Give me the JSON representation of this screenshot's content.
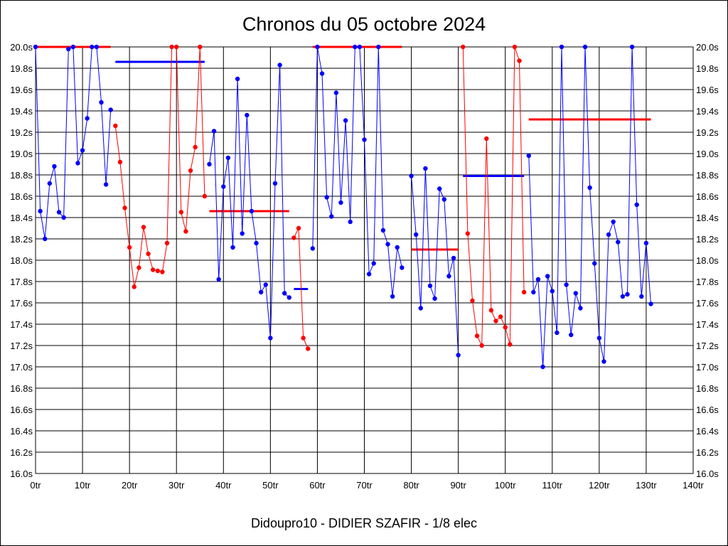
{
  "chart_data": {
    "type": "line",
    "title": "Chronos du 05 octobre 2024",
    "footer": "Didoupro10 - DIDIER SZAFIR - 1/8 elec",
    "xlabel": "",
    "ylabel": "",
    "xlim": [
      0,
      140
    ],
    "ylim": [
      16.0,
      20.0
    ],
    "grid": true,
    "x_ticks": [
      0,
      10,
      20,
      30,
      40,
      50,
      60,
      70,
      80,
      90,
      100,
      110,
      120,
      130,
      140
    ],
    "x_tick_labels": [
      "0tr",
      "10tr",
      "20tr",
      "30tr",
      "40tr",
      "50tr",
      "60tr",
      "70tr",
      "80tr",
      "90tr",
      "100tr",
      "110tr",
      "120tr",
      "130tr",
      "140tr"
    ],
    "y_ticks": [
      16.0,
      16.2,
      16.4,
      16.6,
      16.8,
      17.0,
      17.2,
      17.4,
      17.6,
      17.8,
      18.0,
      18.2,
      18.4,
      18.6,
      18.8,
      19.0,
      19.2,
      19.4,
      19.6,
      19.8,
      20.0
    ],
    "y_tick_labels": [
      "16.0s",
      "16.2s",
      "16.4s",
      "16.6s",
      "16.8s",
      "17.0s",
      "17.2s",
      "17.4s",
      "17.6s",
      "17.8s",
      "18.0s",
      "18.2s",
      "18.4s",
      "18.6s",
      "18.8s",
      "19.0s",
      "19.2s",
      "19.4s",
      "19.6s",
      "19.8s",
      "20.0s"
    ],
    "colors": {
      "blue": "#0000ff",
      "red": "#ff0000"
    },
    "series": [
      {
        "color": "blue",
        "points": [
          [
            0,
            20.0
          ],
          [
            1,
            18.46
          ],
          [
            2,
            18.2
          ],
          [
            3,
            18.72
          ],
          [
            4,
            18.88
          ],
          [
            5,
            18.45
          ],
          [
            6,
            18.4
          ],
          [
            7,
            19.98
          ],
          [
            8,
            20.0
          ],
          [
            9,
            18.91
          ],
          [
            10,
            19.03
          ],
          [
            11,
            19.33
          ],
          [
            12,
            20.0
          ],
          [
            13,
            20.0
          ],
          [
            14,
            19.48
          ],
          [
            15,
            18.71
          ],
          [
            16,
            19.41
          ]
        ]
      },
      {
        "color": "red",
        "points": [
          [
            17,
            19.26
          ],
          [
            18,
            18.92
          ],
          [
            19,
            18.49
          ],
          [
            20,
            18.12
          ],
          [
            21,
            17.75
          ],
          [
            22,
            17.93
          ],
          [
            23,
            18.31
          ],
          [
            24,
            18.06
          ],
          [
            25,
            17.91
          ],
          [
            26,
            17.9
          ],
          [
            27,
            17.89
          ],
          [
            28,
            18.16
          ],
          [
            29,
            20.0
          ],
          [
            30,
            20.0
          ],
          [
            31,
            18.45
          ],
          [
            32,
            18.27
          ],
          [
            33,
            18.84
          ],
          [
            34,
            19.06
          ],
          [
            35,
            20.0
          ],
          [
            36,
            18.6
          ]
        ]
      },
      {
        "color": "blue",
        "points": [
          [
            37,
            18.9
          ],
          [
            38,
            19.21
          ],
          [
            39,
            17.82
          ],
          [
            40,
            18.69
          ],
          [
            41,
            18.96
          ],
          [
            42,
            18.12
          ],
          [
            43,
            19.7
          ],
          [
            44,
            18.25
          ],
          [
            45,
            19.36
          ],
          [
            46,
            18.46
          ],
          [
            47,
            18.16
          ],
          [
            48,
            17.7
          ],
          [
            49,
            17.77
          ],
          [
            50,
            17.27
          ],
          [
            51,
            18.72
          ],
          [
            52,
            19.83
          ],
          [
            53,
            17.69
          ],
          [
            54,
            17.65
          ]
        ]
      },
      {
        "color": "red",
        "points": [
          [
            55,
            18.21
          ],
          [
            56,
            18.3
          ],
          [
            57,
            17.27
          ],
          [
            58,
            17.17
          ]
        ]
      },
      {
        "color": "blue",
        "points": [
          [
            59,
            18.11
          ],
          [
            60,
            20.0
          ],
          [
            61,
            19.75
          ],
          [
            62,
            18.59
          ],
          [
            63,
            18.41
          ],
          [
            64,
            19.57
          ],
          [
            65,
            18.54
          ],
          [
            66,
            19.31
          ],
          [
            67,
            18.36
          ],
          [
            68,
            20.0
          ],
          [
            69,
            20.0
          ],
          [
            70,
            19.13
          ],
          [
            71,
            17.87
          ],
          [
            72,
            17.97
          ],
          [
            73,
            20.0
          ],
          [
            74,
            18.28
          ],
          [
            75,
            18.15
          ],
          [
            76,
            17.66
          ],
          [
            77,
            18.12
          ],
          [
            78,
            17.93
          ]
        ]
      },
      {
        "color": "blue",
        "points": [
          [
            80,
            18.79
          ],
          [
            81,
            18.24
          ],
          [
            82,
            17.55
          ],
          [
            83,
            18.86
          ],
          [
            84,
            17.76
          ],
          [
            85,
            17.64
          ],
          [
            86,
            18.67
          ],
          [
            87,
            18.57
          ],
          [
            88,
            17.85
          ],
          [
            89,
            18.02
          ],
          [
            90,
            17.11
          ]
        ]
      },
      {
        "color": "red",
        "points": [
          [
            91,
            20.0
          ],
          [
            92,
            18.25
          ],
          [
            93,
            17.62
          ],
          [
            94,
            17.29
          ],
          [
            95,
            17.2
          ],
          [
            96,
            19.14
          ],
          [
            97,
            17.53
          ],
          [
            98,
            17.43
          ],
          [
            99,
            17.47
          ],
          [
            100,
            17.37
          ],
          [
            101,
            17.21
          ],
          [
            102,
            20.0
          ],
          [
            103,
            19.87
          ],
          [
            104,
            17.7
          ]
        ]
      },
      {
        "color": "blue",
        "points": [
          [
            105,
            18.98
          ],
          [
            106,
            17.7
          ],
          [
            107,
            17.82
          ],
          [
            108,
            17.0
          ],
          [
            109,
            17.85
          ],
          [
            110,
            17.71
          ],
          [
            111,
            17.32
          ],
          [
            112,
            20.0
          ],
          [
            113,
            17.77
          ],
          [
            114,
            17.3
          ],
          [
            115,
            17.69
          ],
          [
            116,
            17.55
          ],
          [
            117,
            20.0
          ],
          [
            118,
            18.68
          ],
          [
            119,
            17.97
          ],
          [
            120,
            17.27
          ],
          [
            121,
            17.05
          ],
          [
            122,
            18.24
          ],
          [
            123,
            18.36
          ],
          [
            124,
            18.17
          ],
          [
            125,
            17.66
          ],
          [
            126,
            17.68
          ],
          [
            127,
            20.0
          ],
          [
            128,
            18.52
          ],
          [
            129,
            17.66
          ],
          [
            130,
            18.16
          ],
          [
            131,
            17.59
          ]
        ]
      }
    ],
    "average_lines": [
      {
        "color": "red",
        "x": [
          0,
          16
        ],
        "y": 20.0
      },
      {
        "color": "blue",
        "x": [
          17,
          36
        ],
        "y": 19.86
      },
      {
        "color": "red",
        "x": [
          37,
          54
        ],
        "y": 18.46
      },
      {
        "color": "blue",
        "x": [
          55,
          58
        ],
        "y": 17.73
      },
      {
        "color": "red",
        "x": [
          59,
          78
        ],
        "y": 20.0
      },
      {
        "color": "red",
        "x": [
          80,
          90
        ],
        "y": 18.1
      },
      {
        "color": "blue",
        "x": [
          91,
          104
        ],
        "y": 18.79
      },
      {
        "color": "red",
        "x": [
          105,
          131
        ],
        "y": 19.32
      }
    ]
  }
}
